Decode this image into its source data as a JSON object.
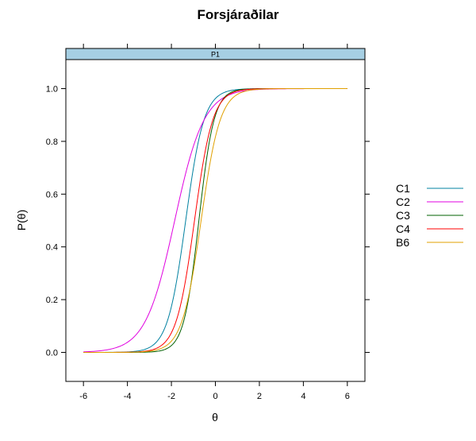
{
  "chart_data": {
    "type": "line",
    "title": "Forsjáraðilar",
    "panel_label": "P1",
    "xlabel": "θ",
    "ylabel": "P(θ)",
    "xlim": [
      -6.8,
      6.8
    ],
    "ylim": [
      -0.11,
      1.11
    ],
    "x_ticks": [
      -6,
      -4,
      -2,
      0,
      2,
      4,
      6
    ],
    "y_ticks": [
      0.0,
      0.2,
      0.4,
      0.6,
      0.8,
      1.0
    ],
    "x_tick_labels": [
      "-6",
      "-4",
      "-2",
      "0",
      "2",
      "4",
      "6"
    ],
    "y_tick_labels": [
      "0.0",
      "0.2",
      "0.4",
      "0.6",
      "0.8",
      "1.0"
    ],
    "x_range": [
      -6,
      6
    ],
    "legend_position": "right",
    "series": [
      {
        "name": "C1",
        "color": "#0080a0",
        "b": -1.35,
        "a": 2.4
      },
      {
        "name": "C2",
        "color": "#e000e0",
        "b": -1.85,
        "a": 1.5
      },
      {
        "name": "C3",
        "color": "#006000",
        "b": -0.75,
        "a": 2.9
      },
      {
        "name": "C4",
        "color": "#ff0000",
        "b": -0.95,
        "a": 2.4
      },
      {
        "name": "B6",
        "color": "#e0a000",
        "b": -0.65,
        "a": 2.3
      }
    ]
  }
}
